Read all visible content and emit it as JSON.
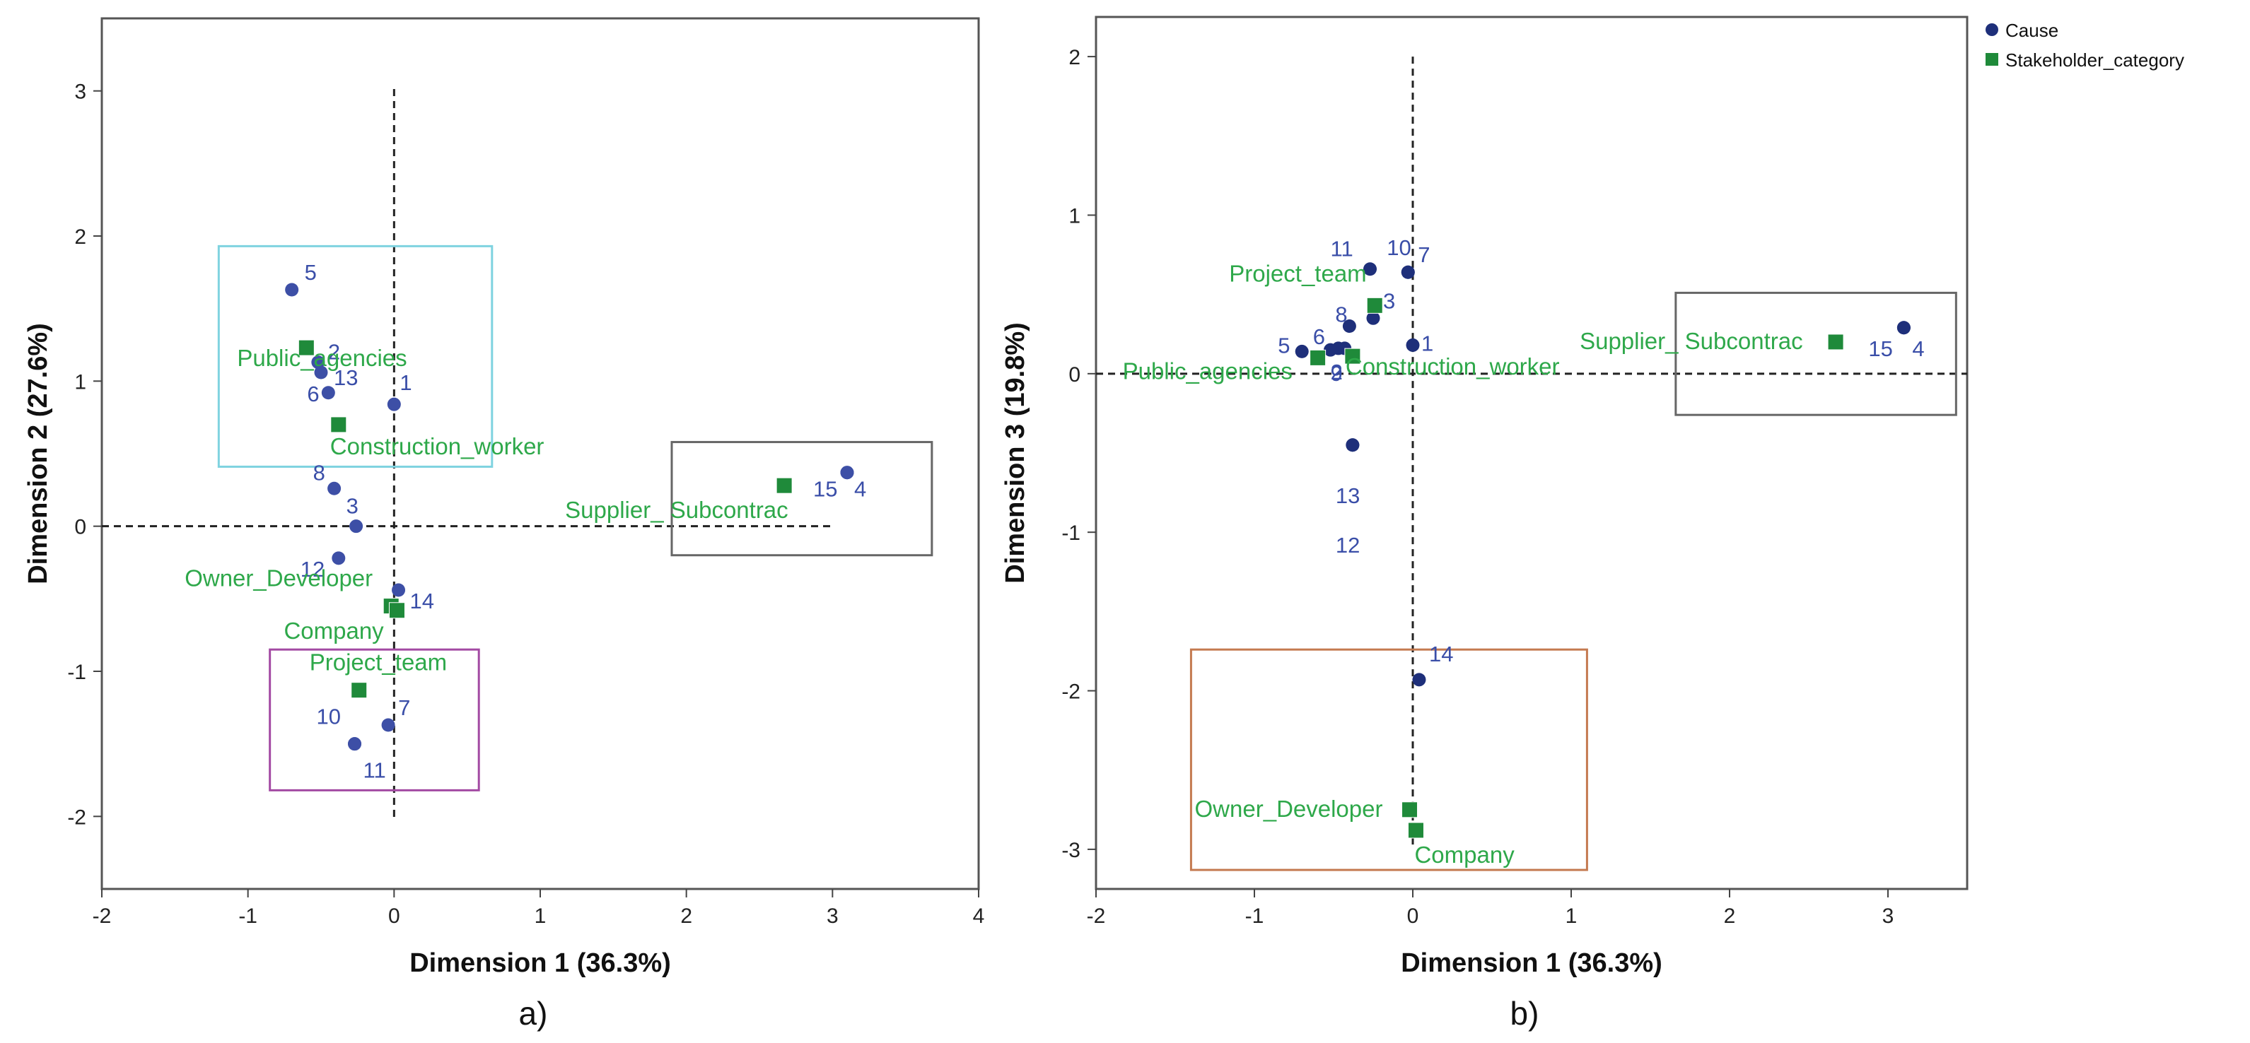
{
  "chart_data": [
    {
      "type": "scatter",
      "panel_caption": "a)",
      "xlabel": "Dimension 1 (36.3%)",
      "ylabel": "Dimension 2 (27.6%)",
      "xlim": [
        -2,
        4
      ],
      "ylim": [
        -2.5,
        3.5
      ],
      "xticks": [
        -2,
        -1,
        0,
        1,
        2,
        3,
        4
      ],
      "yticks": [
        -2,
        -1,
        0,
        1,
        2,
        3
      ],
      "reference_lines": {
        "x": 0,
        "y": 0,
        "x_extent": [
          -2,
          3
        ],
        "style": "dashed"
      },
      "highlight_boxes": [
        {
          "x": [
            -1.2,
            0.67
          ],
          "y": [
            0.41,
            1.93
          ],
          "color": "#7fd3e0"
        },
        {
          "x": [
            1.9,
            3.68
          ],
          "y": [
            -0.2,
            0.58
          ],
          "color": "#666666"
        },
        {
          "x": [
            -0.85,
            0.58
          ],
          "y": [
            -1.82,
            -0.85
          ],
          "color": "#a34aa3"
        }
      ],
      "series": [
        {
          "name": "Cause",
          "color": "#3d4fa6",
          "marker": "circle",
          "points": [
            {
              "label": "5",
              "x": -0.7,
              "y": 1.63
            },
            {
              "label": "2",
              "x": -0.52,
              "y": 1.13
            },
            {
              "label": "13",
              "x": -0.5,
              "y": 1.06
            },
            {
              "label": "6",
              "x": -0.45,
              "y": 0.92
            },
            {
              "label": "1",
              "x": 0.0,
              "y": 0.84
            },
            {
              "label": "8",
              "x": -0.41,
              "y": 0.26
            },
            {
              "label": "3",
              "x": -0.26,
              "y": 0.0
            },
            {
              "label": "12",
              "x": -0.38,
              "y": -0.22
            },
            {
              "label": "14",
              "x": 0.03,
              "y": -0.44
            },
            {
              "label": "15",
              "x": 3.1,
              "y": 0.37
            },
            {
              "label": "4",
              "x": 3.1,
              "y": 0.37
            },
            {
              "label": "7",
              "x": -0.04,
              "y": -1.37
            },
            {
              "label": "10",
              "x": -0.27,
              "y": -1.5
            },
            {
              "label": "11",
              "x": -0.27,
              "y": -1.5
            }
          ]
        },
        {
          "name": "Stakeholder_category",
          "color": "#1f8a3a",
          "marker": "square",
          "points": [
            {
              "label": "Public_agencies",
              "x": -0.6,
              "y": 1.23
            },
            {
              "label": "Construction_worker",
              "x": -0.38,
              "y": 0.7
            },
            {
              "label": "Supplier_ Subcontrac",
              "x": 2.67,
              "y": 0.28
            },
            {
              "label": "Owner_Developer",
              "x": -0.02,
              "y": -0.55
            },
            {
              "label": "Company",
              "x": 0.02,
              "y": -0.58
            },
            {
              "label": "Project_team",
              "x": -0.24,
              "y": -1.13
            }
          ]
        }
      ]
    },
    {
      "type": "scatter",
      "panel_caption": "b)",
      "xlabel": "Dimension 1 (36.3%)",
      "ylabel": "Dimension 3 (19.8%)",
      "xlim": [
        -2,
        3.5
      ],
      "ylim": [
        -3.25,
        2.25
      ],
      "xticks": [
        -2,
        -1,
        0,
        1,
        2,
        3
      ],
      "yticks": [
        -3,
        -2,
        -1,
        0,
        1,
        2
      ],
      "reference_lines": {
        "x": 0,
        "y": 0,
        "y_extent": [
          -3,
          2
        ],
        "style": "dashed"
      },
      "highlight_boxes": [
        {
          "x": [
            1.66,
            3.43
          ],
          "y": [
            -0.26,
            0.51
          ],
          "color": "#666666"
        },
        {
          "x": [
            -1.4,
            1.1
          ],
          "y": [
            -3.13,
            -1.74
          ],
          "color": "#c47a50"
        }
      ],
      "series": [
        {
          "name": "Cause",
          "color": "#1e2f7a",
          "marker": "circle",
          "points": [
            {
              "label": "11",
              "x": -0.27,
              "y": 0.66
            },
            {
              "label": "10",
              "x": -0.03,
              "y": 0.64
            },
            {
              "label": "7",
              "x": -0.03,
              "y": 0.64
            },
            {
              "label": "3",
              "x": -0.25,
              "y": 0.35
            },
            {
              "label": "8",
              "x": -0.4,
              "y": 0.3
            },
            {
              "label": "6",
              "x": -0.47,
              "y": 0.16
            },
            {
              "label": "5",
              "x": -0.7,
              "y": 0.14
            },
            {
              "label": "9",
              "x": -0.52,
              "y": 0.15
            },
            {
              "label": "2",
              "x": -0.43,
              "y": 0.16
            },
            {
              "label": "1",
              "x": 0.0,
              "y": 0.18
            },
            {
              "label": "13",
              "x": -0.38,
              "y": -0.45
            },
            {
              "label": "12",
              "x": -0.38,
              "y": -0.45
            },
            {
              "label": "15",
              "x": 3.1,
              "y": 0.29
            },
            {
              "label": "4",
              "x": 3.1,
              "y": 0.29
            },
            {
              "label": "14",
              "x": 0.04,
              "y": -1.93
            }
          ]
        },
        {
          "name": "Stakeholder_category",
          "color": "#1f8a3a",
          "marker": "square",
          "points": [
            {
              "label": "Project_team",
              "x": -0.24,
              "y": 0.43
            },
            {
              "label": "Public_agencies",
              "x": -0.6,
              "y": 0.1
            },
            {
              "label": "Construction_worker",
              "x": -0.38,
              "y": 0.11
            },
            {
              "label": "Supplier_ Subcontrac",
              "x": 2.67,
              "y": 0.2
            },
            {
              "label": "Owner_Developer",
              "x": -0.02,
              "y": -2.75
            },
            {
              "label": "Company",
              "x": 0.02,
              "y": -2.88
            }
          ]
        }
      ],
      "legend": {
        "placement": "top-right",
        "entries": [
          {
            "name": "Cause",
            "color": "#1e2f7a",
            "marker": "circle"
          },
          {
            "name": "Stakeholder_category",
            "color": "#1f8a3a",
            "marker": "square"
          }
        ]
      }
    }
  ]
}
